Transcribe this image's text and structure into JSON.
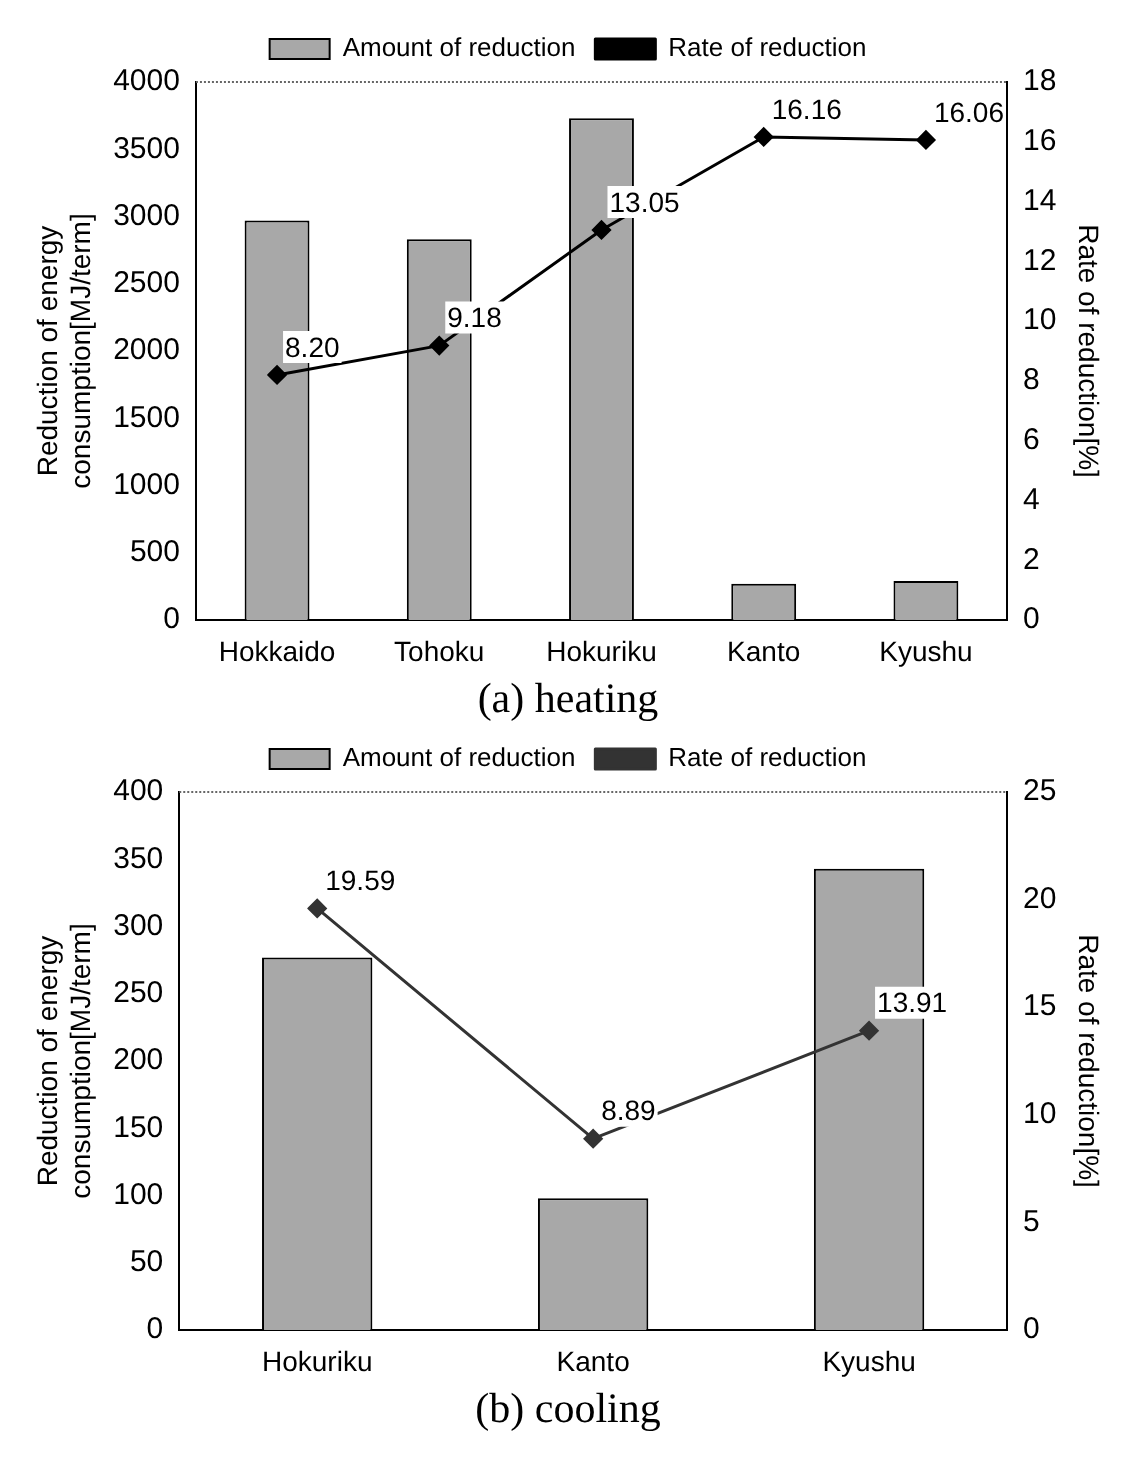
{
  "chart_data": [
    {
      "type": "bar",
      "title": "(a) heating",
      "categories": [
        "Hokkaido",
        "Tohoku",
        "Hokuriku",
        "Kanto",
        "Kyushu"
      ],
      "ylabel": "Reduction of energy\nconsumption[MJ/term]",
      "y2label": "Rate of reduction[%]",
      "ylim": [
        0,
        4000
      ],
      "yticks": [
        0,
        500,
        1000,
        1500,
        2000,
        2500,
        3000,
        3500,
        4000
      ],
      "y2lim": [
        0,
        18
      ],
      "y2ticks": [
        0,
        2,
        4,
        6,
        8,
        10,
        12,
        14,
        16,
        18
      ],
      "legend": "top",
      "marker": "diamond",
      "series": [
        {
          "name": "Amount of reduction",
          "color": "#a8a8a8",
          "values": [
            2970,
            2830,
            3730,
            270,
            290
          ]
        },
        {
          "name": "Rate of reduction",
          "type": "line",
          "axis": "y2",
          "color": "#000000",
          "values": [
            8.2,
            9.18,
            13.05,
            16.16,
            16.06
          ],
          "value_labels": [
            "8.20",
            "9.18",
            "13.05",
            "16.16",
            "16.06"
          ]
        }
      ]
    },
    {
      "type": "bar",
      "title": "(b) cooling",
      "categories": [
        "Hokuriku",
        "Kanto",
        "Kyushu"
      ],
      "ylabel": "Reduction of energy\nconsumption[MJ/term]",
      "y2label": "Rate of reduction[%]",
      "ylim": [
        0,
        400
      ],
      "yticks": [
        0,
        50,
        100,
        150,
        200,
        250,
        300,
        350,
        400
      ],
      "y2lim": [
        0,
        25
      ],
      "y2ticks": [
        0,
        5,
        10,
        15,
        20,
        25
      ],
      "legend": "top",
      "marker": "diamond",
      "series": [
        {
          "name": "Amount of reduction",
          "color": "#a8a8a8",
          "values": [
            277,
            98,
            343
          ]
        },
        {
          "name": "Rate of reduction",
          "type": "line",
          "axis": "y2",
          "color": "#333333",
          "values": [
            19.59,
            8.89,
            13.91
          ],
          "value_labels": [
            "19.59",
            "8.89",
            "13.91"
          ]
        }
      ]
    }
  ]
}
